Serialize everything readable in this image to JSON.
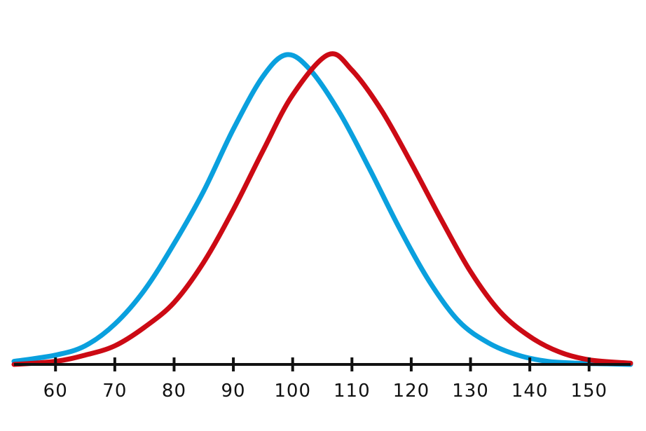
{
  "chart_data": {
    "type": "line",
    "title": "",
    "xlabel": "",
    "ylabel": "",
    "xlim": [
      53,
      157
    ],
    "ylim": [
      0,
      1
    ],
    "grid": false,
    "x_ticks": [
      60,
      70,
      80,
      90,
      100,
      110,
      120,
      130,
      140,
      150
    ],
    "tick_labels": [
      "60",
      "70",
      "80",
      "90",
      "100",
      "110",
      "120",
      "130",
      "140",
      "150"
    ],
    "series": [
      {
        "color": "#0aa0de",
        "x": [
          53,
          60,
          65,
          70,
          75,
          80,
          85,
          90,
          95,
          99,
          103,
          108,
          113,
          118,
          123,
          128,
          133,
          138,
          143,
          148,
          153,
          157
        ],
        "y": [
          0.01,
          0.03,
          0.06,
          0.13,
          0.24,
          0.39,
          0.56,
          0.76,
          0.93,
          1.0,
          0.95,
          0.81,
          0.63,
          0.44,
          0.27,
          0.14,
          0.07,
          0.03,
          0.01,
          0.004,
          0.002,
          0.0
        ]
      },
      {
        "color": "#cc0a14",
        "x": [
          53,
          60,
          65,
          70,
          75,
          80,
          85,
          90,
          95,
          100,
          106,
          110,
          115,
          120,
          125,
          130,
          135,
          140,
          145,
          150,
          157
        ],
        "y": [
          0.0,
          0.01,
          0.03,
          0.06,
          0.12,
          0.2,
          0.33,
          0.5,
          0.69,
          0.87,
          1.0,
          0.95,
          0.82,
          0.65,
          0.47,
          0.3,
          0.17,
          0.09,
          0.04,
          0.015,
          0.004
        ]
      }
    ]
  }
}
